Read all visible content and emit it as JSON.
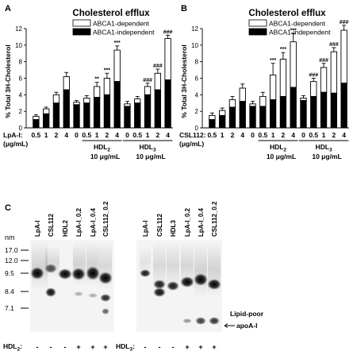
{
  "chart_data": [
    {
      "type": "bar",
      "panel_label": "A",
      "title": "Cholesterol efflux",
      "ylabel": "% Total 3H-Cholesterol",
      "ylim": [
        0,
        12
      ],
      "yticks": [
        "0",
        "2",
        "4",
        "6",
        "8",
        "10",
        "12"
      ],
      "row_label": "LpA-I:",
      "row_sublabel": "(μg/mL)",
      "categories": [
        "0.5",
        "1",
        "2",
        "4",
        "0",
        "0.5",
        "1",
        "2",
        "4",
        "0",
        "0.5",
        "1",
        "2",
        "4"
      ],
      "groups": [
        {
          "label": "HDL",
          "sub": "2",
          "conc": "10 μg/mL",
          "from": 5,
          "to": 8
        },
        {
          "label": "HDL",
          "sub": "3",
          "conc": "10 μg/mL",
          "from": 9,
          "to": 13
        }
      ],
      "series": [
        {
          "name": "ABCA1-dependent",
          "fill": "#ffffff",
          "values": [
            0.4,
            0.6,
            1.0,
            1.6,
            0.3,
            0.6,
            1.3,
            2.0,
            3.8,
            0.3,
            0.5,
            1.0,
            2.0,
            5.0
          ],
          "errors": [
            0.2,
            0.2,
            0.3,
            0.5,
            0.2,
            0.3,
            0.5,
            0.6,
            0.5,
            0.3,
            0.3,
            0.4,
            0.5,
            0.4
          ]
        },
        {
          "name": "ABCA1-independent",
          "fill": "#000000",
          "values": [
            1.0,
            1.7,
            3.0,
            4.6,
            2.8,
            3.0,
            3.7,
            4.0,
            5.6,
            2.6,
            3.0,
            4.0,
            4.6,
            5.8
          ],
          "errors": [
            0.2,
            0.2,
            0.3,
            0.3,
            0.2,
            0.2,
            0.3,
            0.3,
            0.3,
            0.2,
            0.2,
            0.3,
            0.3,
            0.2
          ]
        }
      ],
      "annotations": [
        "",
        "",
        "",
        "",
        "",
        "",
        "**",
        "***",
        "***",
        "",
        "",
        "###",
        "###",
        "###"
      ]
    },
    {
      "type": "bar",
      "panel_label": "B",
      "title": "Cholesterol efflux",
      "ylabel": "% Total 3H-Cholesterol",
      "ylim": [
        0,
        12
      ],
      "yticks": [
        "0",
        "2",
        "4",
        "6",
        "8",
        "10",
        "12"
      ],
      "row_label": "CSL112:",
      "row_sublabel": "(μg/mL)",
      "categories": [
        "0.5",
        "1",
        "2",
        "4",
        "0",
        "0.5",
        "1",
        "2",
        "4",
        "0",
        "0.5",
        "1",
        "2",
        "4"
      ],
      "groups": [
        {
          "label": "HDL",
          "sub": "2",
          "conc": "10 μg/mL",
          "from": 5,
          "to": 8
        },
        {
          "label": "HDL",
          "sub": "3",
          "conc": "10 μg/mL",
          "from": 9,
          "to": 13
        }
      ],
      "series": [
        {
          "name": "ABCA1-dependent",
          "fill": "#ffffff",
          "values": [
            0.5,
            0.6,
            0.9,
            1.6,
            0.3,
            1.2,
            3.0,
            4.5,
            5.5,
            0.3,
            1.8,
            3.0,
            5.0,
            6.4
          ],
          "errors": [
            0.3,
            0.3,
            0.4,
            0.5,
            0.3,
            0.5,
            1.4,
            0.8,
            1.0,
            0.3,
            0.4,
            0.5,
            0.5,
            0.6
          ]
        },
        {
          "name": "ABCA1-independent",
          "fill": "#000000",
          "values": [
            1.0,
            1.5,
            2.5,
            3.2,
            2.6,
            2.6,
            3.4,
            3.8,
            4.9,
            3.3,
            3.8,
            4.3,
            4.2,
            5.4
          ],
          "errors": [
            0.2,
            0.2,
            0.3,
            0.3,
            0.2,
            0.2,
            0.3,
            0.3,
            0.3,
            0.2,
            0.3,
            0.3,
            0.3,
            0.3
          ]
        }
      ],
      "annotations": [
        "",
        "",
        "",
        "",
        "",
        "",
        "***",
        "***",
        "***",
        "",
        "###",
        "###",
        "###",
        "###"
      ]
    }
  ],
  "panel_c": {
    "label": "C",
    "unit_label": "nm",
    "markers": [
      "17.0",
      "12.0",
      "9.5",
      "8.4",
      "7.1"
    ],
    "blot_left": {
      "lanes": [
        "LpA-I",
        "CSL112",
        "HDL2",
        "LpA-I_0.2",
        "LpA-I_0.4",
        "CSL112_0.2"
      ],
      "row_label": "HDL",
      "row_sub": "2",
      "signs": [
        "-",
        "-",
        "-",
        "+",
        "+",
        "+"
      ]
    },
    "blot_right": {
      "lanes": [
        "LpA-I",
        "CSL112",
        "HDL3",
        "LpA-I_0.2",
        "LpA-I_0.4",
        "CSL112_0.2"
      ],
      "row_label": "HDL",
      "row_sub": "3",
      "signs": [
        "-",
        "-",
        "-",
        "+",
        "+",
        "+"
      ]
    },
    "annotation_line1": "Lipid-poor",
    "annotation_line2": "apoA-I"
  }
}
